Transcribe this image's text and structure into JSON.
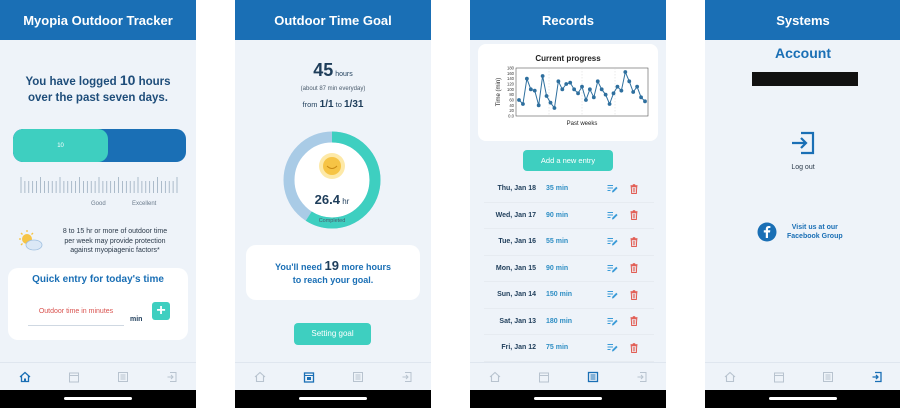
{
  "screen1": {
    "title": "Myopia Outdoor Tracker",
    "logged_prefix": "You have logged ",
    "logged_hours": "10",
    "logged_suffix": " hours",
    "logged_line2": "over the past seven days.",
    "progress_label": "10",
    "progress_fraction": 0.55,
    "tick_good": "Good",
    "tick_excellent": "Excellent",
    "tip_line1": "8 to 15 hr or more of outdoor time",
    "tip_line2": "per week may provide protection",
    "tip_line3": "against myopiagenic factors*",
    "quick_entry_title": "Quick entry for today's time",
    "input_placeholder": "Outdoor time in minutes",
    "min_label": "min",
    "add_symbol": "+"
  },
  "screen2": {
    "title": "Outdoor Time Goal",
    "goal_hours": "45",
    "goal_unit": " hours",
    "avg_text": "(about 87 min everyday)",
    "from_label": "from ",
    "from_date": "1/1",
    "to_label": " to ",
    "to_date": "1/31",
    "completed_value": "26.4",
    "completed_unit": " hr",
    "completed_label": "Completed",
    "ring_fraction": 0.59,
    "need_prefix": "You'll need ",
    "need_hours": "19",
    "need_suffix": " more hours",
    "need_line2": "to reach your goal.",
    "setting_goal_button": "Setting  goal"
  },
  "screen3": {
    "title": "Records",
    "chart_data": {
      "type": "line",
      "title": "Current progress",
      "xlabel": "Past weeks",
      "ylabel": "Time (min)",
      "yticks": [
        "0.0",
        "20",
        "40",
        "60",
        "80",
        "100",
        "120",
        "140",
        "160",
        "180"
      ],
      "ylim": [
        0,
        180
      ],
      "values": [
        60,
        45,
        140,
        100,
        95,
        40,
        150,
        75,
        50,
        30,
        130,
        100,
        120,
        125,
        100,
        85,
        110,
        60,
        100,
        70,
        130,
        100,
        80,
        45,
        85,
        110,
        95,
        165,
        130,
        90,
        110,
        70,
        55
      ]
    },
    "add_entry_button": "Add a new entry",
    "records": [
      {
        "date": "Thu, Jan 18",
        "value": "35 min"
      },
      {
        "date": "Wed, Jan 17",
        "value": "90 min"
      },
      {
        "date": "Tue, Jan 16",
        "value": "55 min"
      },
      {
        "date": "Mon, Jan 15",
        "value": "90 min"
      },
      {
        "date": "Sun, Jan 14",
        "value": "150 min"
      },
      {
        "date": "Sat, Jan 13",
        "value": "180 min"
      },
      {
        "date": "Fri, Jan 12",
        "value": "75 min"
      }
    ]
  },
  "screen4": {
    "title": "Systems",
    "account_label": "Account",
    "logout_label": "Log out",
    "facebook_line1": "Visit us at our",
    "facebook_line2": "Facebook Group"
  },
  "colors": {
    "primary": "#1a6fb5",
    "accent": "#3ecfc0",
    "background": "#eef3f9",
    "delete": "#e04a3f",
    "error_text": "#d9534f"
  }
}
